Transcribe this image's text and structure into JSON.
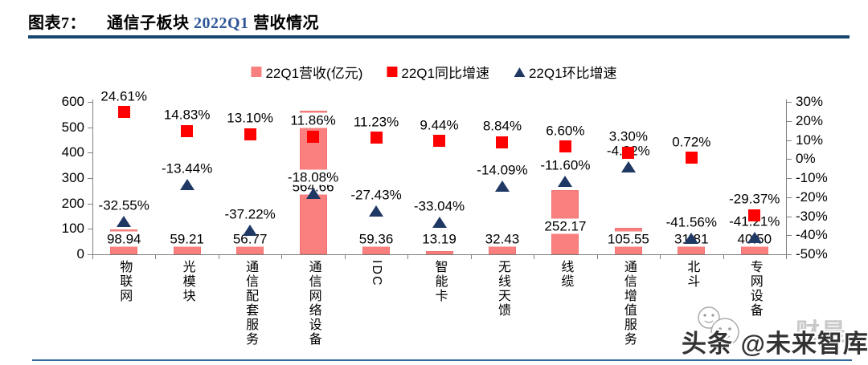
{
  "header": {
    "label": "图表7：",
    "title_black1": "通信子板块 ",
    "title_blue": "2022Q1",
    "title_black2": " 营收情况"
  },
  "legend": [
    {
      "label": "22Q1营收(亿元)",
      "marker": "square",
      "color": "#FA8080"
    },
    {
      "label": "22Q1同比增速",
      "marker": "square",
      "color": "#FE0000"
    },
    {
      "label": "22Q1环比增速",
      "marker": "triangle",
      "color": "#1F3864"
    }
  ],
  "chart_data": {
    "type": "bar",
    "subtype": "bar with scatter-marker overlay (dual axis)",
    "title": "通信子板块 2022Q1 营收情况",
    "categories": [
      "物联网",
      "光模块",
      "通信配套服务",
      "通信网络设备",
      "IDC",
      "智能卡",
      "无线天馈",
      "线缆",
      "通信增值服务",
      "北斗",
      "专网设备"
    ],
    "series": [
      {
        "name": "22Q1营收(亿元)",
        "type": "bar",
        "axis": "left",
        "unit": "亿元",
        "color": "#FA8080",
        "values": [
          98.94,
          59.21,
          56.77,
          564.66,
          59.36,
          13.19,
          32.43,
          252.17,
          105.55,
          31.81,
          40.5
        ]
      },
      {
        "name": "22Q1同比增速",
        "type": "scatter",
        "marker": "square",
        "axis": "right",
        "unit": "%",
        "color": "#FE0000",
        "values": [
          24.61,
          14.83,
          13.1,
          11.86,
          11.23,
          9.44,
          8.84,
          6.6,
          3.3,
          0.72,
          -29.37
        ]
      },
      {
        "name": "22Q1环比增速",
        "type": "scatter",
        "marker": "triangle",
        "axis": "right",
        "unit": "%",
        "color": "#1F3864",
        "values": [
          -32.55,
          -13.44,
          -37.22,
          -18.08,
          -27.43,
          -33.04,
          -14.09,
          -11.6,
          -4.22,
          -41.56,
          -41.21
        ]
      }
    ],
    "left_axis": {
      "min": 0,
      "max": 600,
      "ticks": [
        0,
        100,
        200,
        300,
        400,
        500,
        600
      ]
    },
    "right_axis": {
      "min": -50,
      "max": 30,
      "ticks_pct": [
        30,
        20,
        10,
        0,
        -10,
        -20,
        -30,
        -40,
        -50
      ]
    },
    "grid": false,
    "legend_position": "top-center"
  },
  "watermark": {
    "ghost_text": "财是",
    "main_text": "头条 @未来智库"
  },
  "colors": {
    "bar": "#FA8080",
    "yoy_marker": "#FE0000",
    "qoq_marker": "#1F3864",
    "title_accent": "#2E5597",
    "top_rule": "#17466F",
    "bottom_rule": "#31699B",
    "axis": "#808080"
  }
}
